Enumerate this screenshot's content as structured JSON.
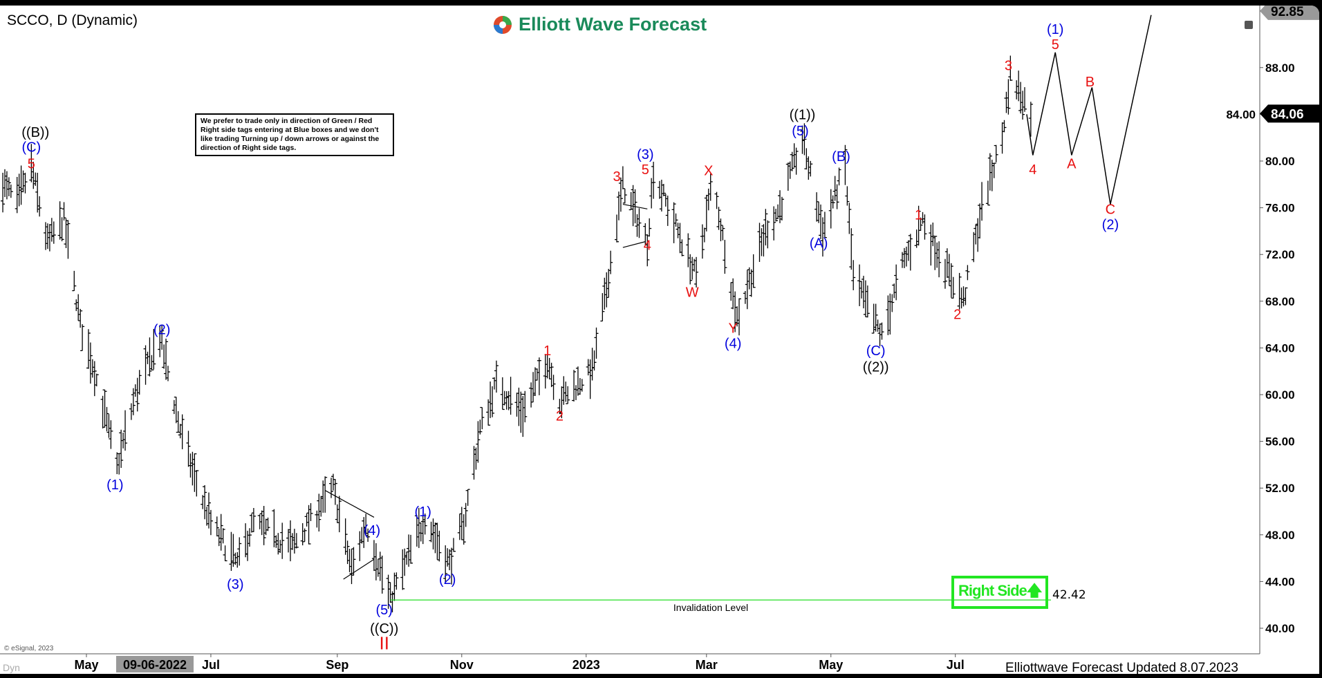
{
  "header": {
    "symbol_title": "SCCO, D (Dynamic)",
    "logo_text": "Elliott Wave Forecast"
  },
  "note": "We prefer to trade only in direction of Green / Red Right side tags entering at Blue boxes and we don't like trading Turning up / down arrows or against the direction of Right side tags.",
  "right_side_tag": {
    "label": "Right Side",
    "arrow": "up-arrow-icon",
    "color": "#22e622"
  },
  "invalidation": {
    "label": "Invalidation Level",
    "value": "42.42",
    "price": 42.42,
    "color": "#22dd22"
  },
  "footer": {
    "updated": "Elliottwave Forecast Updated 8.07.2023",
    "copyright": "© eSignal, 2023",
    "dyn": "Dyn",
    "date_tag": "09-06-2022"
  },
  "colors": {
    "blue": "#0000dd",
    "red": "#e81010",
    "black": "#000000"
  },
  "chart_data": {
    "type": "ohlc-bar",
    "symbol": "SCCO",
    "interval": "D",
    "ylim": [
      38,
      93
    ],
    "price_ticks": [
      "40.00",
      "44.00",
      "48.00",
      "52.00",
      "56.00",
      "60.00",
      "64.00",
      "68.00",
      "72.00",
      "76.00",
      "80.00",
      "84.00",
      "88.00"
    ],
    "last_price": "84.06",
    "top_price": "92.85",
    "x_ticks": [
      {
        "label": "May",
        "date": "2022-05-01"
      },
      {
        "label": "Jul",
        "date": "2022-07-01"
      },
      {
        "label": "Sep",
        "date": "2022-09-01"
      },
      {
        "label": "Nov",
        "date": "2022-11-01"
      },
      {
        "label": "2023",
        "date": "2023-01-01"
      },
      {
        "label": "Mar",
        "date": "2023-03-01"
      },
      {
        "label": "May",
        "date": "2023-05-01"
      },
      {
        "label": "Jul",
        "date": "2023-07-01"
      }
    ],
    "price_path": [
      [
        "2022-03-21",
        78
      ],
      [
        "2022-03-28",
        76.5
      ],
      [
        "2022-04-04",
        79.5
      ],
      [
        "2022-04-12",
        73
      ],
      [
        "2022-04-20",
        75
      ],
      [
        "2022-04-28",
        66
      ],
      [
        "2022-05-05",
        62
      ],
      [
        "2022-05-16",
        53.8
      ],
      [
        "2022-05-25",
        60
      ],
      [
        "2022-06-06",
        65
      ],
      [
        "2022-06-16",
        57
      ],
      [
        "2022-06-23",
        53
      ],
      [
        "2022-07-01",
        49
      ],
      [
        "2022-07-14",
        45.5
      ],
      [
        "2022-07-22",
        49
      ],
      [
        "2022-08-10",
        47
      ],
      [
        "2022-08-30",
        52
      ],
      [
        "2022-09-08",
        45
      ],
      [
        "2022-09-15",
        49
      ],
      [
        "2022-09-27",
        42.4
      ],
      [
        "2022-10-14",
        49.5
      ],
      [
        "2022-10-26",
        45.5
      ],
      [
        "2022-11-02",
        49
      ],
      [
        "2022-11-10",
        57
      ],
      [
        "2022-11-18",
        61
      ],
      [
        "2022-12-01",
        58.5
      ],
      [
        "2022-12-13",
        63
      ],
      [
        "2022-12-19",
        59.5
      ],
      [
        "2023-01-04",
        62
      ],
      [
        "2023-01-10",
        68
      ],
      [
        "2023-01-19",
        78
      ],
      [
        "2023-01-31",
        73
      ],
      [
        "2023-02-03",
        79
      ],
      [
        "2023-02-15",
        74
      ],
      [
        "2023-02-24",
        70
      ],
      [
        "2023-03-04",
        78.5
      ],
      [
        "2023-03-16",
        66.5
      ],
      [
        "2023-03-30",
        74
      ],
      [
        "2023-04-06",
        76
      ],
      [
        "2023-04-17",
        82
      ],
      [
        "2023-04-27",
        74
      ],
      [
        "2023-05-05",
        78
      ],
      [
        "2023-05-08",
        79.5
      ],
      [
        "2023-05-12",
        70
      ],
      [
        "2023-05-26",
        65
      ],
      [
        "2023-06-05",
        71
      ],
      [
        "2023-06-15",
        75
      ],
      [
        "2023-06-23",
        72
      ],
      [
        "2023-07-05",
        68
      ],
      [
        "2023-07-14",
        76
      ],
      [
        "2023-07-24",
        82
      ],
      [
        "2023-07-28",
        87.5
      ],
      [
        "2023-08-07",
        84.06
      ]
    ],
    "projection_path": [
      [
        "2023-08-05",
        84
      ],
      [
        "2023-08-08",
        80.5
      ],
      [
        "2023-08-19",
        89.3
      ],
      [
        "2023-08-27",
        80.5
      ],
      [
        "2023-09-06",
        86.3
      ],
      [
        "2023-09-15",
        76.3
      ],
      [
        "2023-10-05",
        92.5
      ]
    ],
    "wave_labels": [
      {
        "text": "((B))",
        "date": "2022-04-06",
        "price": 82.5,
        "color": "black"
      },
      {
        "text": "(C)",
        "date": "2022-04-04",
        "price": 81.2,
        "color": "blue"
      },
      {
        "text": "5",
        "date": "2022-04-04",
        "price": 79.8,
        "color": "red"
      },
      {
        "text": "(1)",
        "date": "2022-05-15",
        "price": 52.3,
        "color": "blue"
      },
      {
        "text": "(2)",
        "date": "2022-06-07",
        "price": 65.6,
        "color": "blue"
      },
      {
        "text": "(3)",
        "date": "2022-07-13",
        "price": 43.8,
        "color": "blue"
      },
      {
        "text": "(4)",
        "date": "2022-09-18",
        "price": 48.4,
        "color": "blue"
      },
      {
        "text": "(5)",
        "date": "2022-09-24",
        "price": 41.6,
        "color": "blue"
      },
      {
        "text": "((C))",
        "date": "2022-09-24",
        "price": 40.0,
        "color": "black"
      },
      {
        "text": "II",
        "date": "2022-09-24",
        "price": 38.6,
        "color": "red"
      },
      {
        "text": "(1)",
        "date": "2022-10-13",
        "price": 50.0,
        "color": "blue"
      },
      {
        "text": "(2)",
        "date": "2022-10-25",
        "price": 44.2,
        "color": "blue"
      },
      {
        "text": "1",
        "date": "2022-12-13",
        "price": 63.8,
        "color": "red"
      },
      {
        "text": "2",
        "date": "2022-12-19",
        "price": 58.2,
        "color": "red"
      },
      {
        "text": "3",
        "date": "2023-01-16",
        "price": 78.7,
        "color": "red"
      },
      {
        "text": "(3)",
        "date": "2023-01-30",
        "price": 80.6,
        "color": "blue"
      },
      {
        "text": "5",
        "date": "2023-01-30",
        "price": 79.3,
        "color": "red"
      },
      {
        "text": "4",
        "date": "2023-01-31",
        "price": 72.8,
        "color": "red"
      },
      {
        "text": "W",
        "date": "2023-02-22",
        "price": 68.8,
        "color": "red"
      },
      {
        "text": "X",
        "date": "2023-03-02",
        "price": 79.2,
        "color": "red"
      },
      {
        "text": "Y",
        "date": "2023-03-14",
        "price": 65.7,
        "color": "red"
      },
      {
        "text": "(4)",
        "date": "2023-03-14",
        "price": 64.4,
        "color": "blue"
      },
      {
        "text": "((1))",
        "date": "2023-04-17",
        "price": 84.0,
        "color": "black"
      },
      {
        "text": "(5)",
        "date": "2023-04-16",
        "price": 82.6,
        "color": "blue"
      },
      {
        "text": "(A)",
        "date": "2023-04-25",
        "price": 73.0,
        "color": "blue"
      },
      {
        "text": "(B)",
        "date": "2023-05-06",
        "price": 80.4,
        "color": "blue"
      },
      {
        "text": "(C)",
        "date": "2023-05-23",
        "price": 63.8,
        "color": "blue"
      },
      {
        "text": "((2))",
        "date": "2023-05-23",
        "price": 62.4,
        "color": "black"
      },
      {
        "text": "1",
        "date": "2023-06-13",
        "price": 75.4,
        "color": "red"
      },
      {
        "text": "2",
        "date": "2023-07-02",
        "price": 66.9,
        "color": "red"
      },
      {
        "text": "3",
        "date": "2023-07-27",
        "price": 88.2,
        "color": "red"
      },
      {
        "text": "(1)",
        "date": "2023-08-19",
        "price": 91.3,
        "color": "blue"
      },
      {
        "text": "5",
        "date": "2023-08-19",
        "price": 90.0,
        "color": "red"
      },
      {
        "text": "4",
        "date": "2023-08-08",
        "price": 79.3,
        "color": "red"
      },
      {
        "text": "A",
        "date": "2023-08-27",
        "price": 79.8,
        "color": "red"
      },
      {
        "text": "B",
        "date": "2023-09-05",
        "price": 86.8,
        "color": "red"
      },
      {
        "text": "C",
        "date": "2023-09-15",
        "price": 75.9,
        "color": "red"
      },
      {
        "text": "(2)",
        "date": "2023-09-15",
        "price": 74.6,
        "color": "blue"
      }
    ],
    "trendlines": [
      [
        [
          "2022-08-26",
          51.8
        ],
        [
          "2022-09-19",
          49.5
        ]
      ],
      [
        [
          "2022-09-04",
          44.2
        ],
        [
          "2022-09-19",
          45.9
        ]
      ],
      [
        [
          "2023-01-19",
          76.3
        ],
        [
          "2023-01-31",
          75.9
        ]
      ],
      [
        [
          "2023-01-19",
          72.6
        ],
        [
          "2023-01-30",
          73.1
        ]
      ]
    ]
  }
}
